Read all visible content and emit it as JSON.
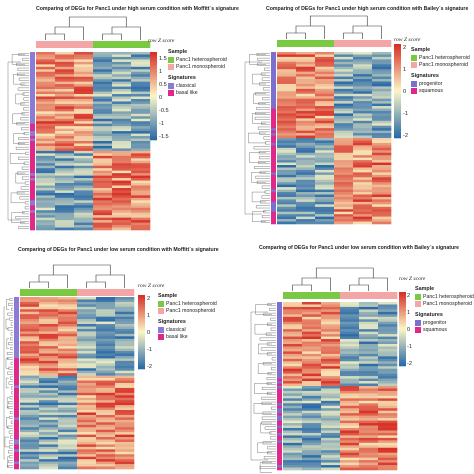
{
  "colors": {
    "heterospheroid": "#7ac943",
    "monospheroid": "#f4a6a6",
    "classical": "#8c7bd6",
    "basal_like": "#e0288a",
    "progenitor": "#7b6fd0",
    "squamous": "#e0288a",
    "scale_low": "#2b6aa8",
    "scale_mid": "#fbf7c5",
    "scale_high": "#d73027"
  },
  "chart_data": [
    {
      "type": "heatmap",
      "title": "Comparing of DEGs for Panc1 under high serum condition with Moffitt`s signature",
      "colorbar_title": "row Z score",
      "colorbar_ticks": [
        "1.5",
        "1",
        "0.5",
        "0",
        "-0.5",
        "-1",
        "-1.5"
      ],
      "legend": {
        "sample_title": "Sample",
        "sample_entries": [
          "Panc1 heterospheroid",
          "Panc1 monospheroid"
        ],
        "signature_title": "Signatures",
        "signature_entries": [
          "classical",
          "basal like"
        ]
      },
      "columns": [
        "monospheroid",
        "monospheroid",
        "monospheroid",
        "heterospheroid",
        "heterospheroid",
        "heterospheroid"
      ]
    },
    {
      "type": "heatmap",
      "title": "Comparing of DEGs for Panc1 under high serum condition with  Bailey`s signature",
      "colorbar_title": "row Z score",
      "colorbar_ticks": [
        "2",
        "1",
        "0",
        "-1",
        "-2"
      ],
      "legend": {
        "sample_title": "Sample",
        "sample_entries": [
          "Panc1 heterospheroid",
          "Panc1 monospheroid"
        ],
        "signature_title": "Signatures",
        "signature_entries": [
          "progenitor",
          "squamous"
        ]
      },
      "columns": [
        "heterospheroid",
        "heterospheroid",
        "heterospheroid",
        "monospheroid",
        "monospheroid",
        "monospheroid"
      ]
    },
    {
      "type": "heatmap",
      "title": "Comparing of DEGs for Panc1 under low serum condition with Moffitt`s signature",
      "colorbar_title": "row Z score",
      "colorbar_ticks": [
        "2",
        "1",
        "0",
        "-1",
        "-2"
      ],
      "legend": {
        "sample_title": "Sample",
        "sample_entries": [
          "Panc1 heterospheroid",
          "Panc1 monospheroid"
        ],
        "signature_title": "Signatures",
        "signature_entries": [
          "classical",
          "basal like"
        ]
      },
      "columns": [
        "heterospheroid",
        "heterospheroid",
        "heterospheroid",
        "monospheroid",
        "monospheroid",
        "monospheroid"
      ]
    },
    {
      "type": "heatmap",
      "title": "Comparing of DEGs for Panc1 under low serum condition with  Bailey`s signature",
      "colorbar_title": "row Z score",
      "colorbar_ticks": [
        "2",
        "1",
        "0",
        "-1",
        "-2"
      ],
      "legend": {
        "sample_title": "Sample",
        "sample_entries": [
          "Panc1 heterospheroid",
          "Panc1 monospheroid"
        ],
        "signature_title": "Signatures",
        "signature_entries": [
          "progenitor",
          "squamous"
        ]
      },
      "columns": [
        "heterospheroid",
        "heterospheroid",
        "heterospheroid",
        "monospheroid",
        "monospheroid",
        "monospheroid"
      ]
    }
  ]
}
